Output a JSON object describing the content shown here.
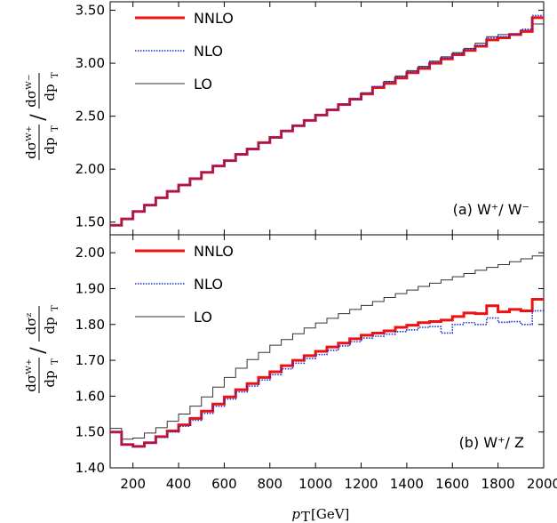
{
  "chart_data": [
    {
      "type": "line",
      "panel_label": "(a) W⁺/ W⁻",
      "ylabel_numerator": "dσᵂ⁺",
      "ylabel_num_sub": "dp",
      "ylabel_denominator": "dσᵂ⁻",
      "ylabel_T": "T",
      "ylim": [
        1.38,
        3.58
      ],
      "yticks": [
        "1.50",
        "2.00",
        "2.50",
        "3.00",
        "3.50"
      ],
      "ytick_values": [
        1.5,
        2.0,
        2.5,
        3.0,
        3.5
      ],
      "xlim": [
        100,
        2000
      ],
      "legend_position": "top-left",
      "x_edges": [
        100,
        150,
        200,
        250,
        300,
        350,
        400,
        450,
        500,
        550,
        600,
        650,
        700,
        750,
        800,
        850,
        900,
        950,
        1000,
        1050,
        1100,
        1150,
        1200,
        1250,
        1300,
        1350,
        1400,
        1450,
        1500,
        1550,
        1600,
        1650,
        1700,
        1750,
        1800,
        1850,
        1900,
        1950,
        2000
      ],
      "series": [
        {
          "name": "NNLO",
          "color": "#ee1111",
          "style": "solid",
          "width": 3,
          "values": [
            1.47,
            1.53,
            1.6,
            1.66,
            1.73,
            1.79,
            1.85,
            1.91,
            1.97,
            2.03,
            2.08,
            2.14,
            2.19,
            2.25,
            2.3,
            2.36,
            2.41,
            2.46,
            2.51,
            2.56,
            2.61,
            2.66,
            2.71,
            2.77,
            2.81,
            2.86,
            2.91,
            2.95,
            3.0,
            3.04,
            3.08,
            3.12,
            3.16,
            3.22,
            3.24,
            3.27,
            3.3,
            3.43,
            3.38
          ]
        },
        {
          "name": "NLO",
          "color": "#1a2fd6",
          "style": "dotted",
          "width": 1.6,
          "values": [
            1.47,
            1.53,
            1.6,
            1.66,
            1.73,
            1.79,
            1.85,
            1.91,
            1.97,
            2.03,
            2.08,
            2.14,
            2.19,
            2.25,
            2.3,
            2.36,
            2.41,
            2.46,
            2.51,
            2.56,
            2.61,
            2.66,
            2.72,
            2.78,
            2.82,
            2.87,
            2.92,
            2.96,
            3.01,
            3.05,
            3.09,
            3.13,
            3.17,
            3.24,
            3.25,
            3.27,
            3.32,
            3.45,
            3.4
          ]
        },
        {
          "name": "LO",
          "color": "#333333",
          "style": "solid",
          "width": 1,
          "values": [
            1.47,
            1.53,
            1.6,
            1.66,
            1.73,
            1.79,
            1.85,
            1.91,
            1.97,
            2.03,
            2.08,
            2.14,
            2.19,
            2.25,
            2.3,
            2.36,
            2.41,
            2.46,
            2.51,
            2.56,
            2.61,
            2.67,
            2.72,
            2.78,
            2.83,
            2.88,
            2.93,
            2.97,
            3.02,
            3.06,
            3.1,
            3.14,
            3.19,
            3.25,
            3.27,
            3.28,
            3.31,
            3.37,
            3.4
          ]
        }
      ]
    },
    {
      "type": "line",
      "panel_label": "(b) W⁺/ Z",
      "ylabel_numerator": "dσᵂ⁺",
      "ylabel_num_sub": "dp",
      "ylabel_denominator": "dσᶻ",
      "ylabel_T": "T",
      "ylim": [
        1.4,
        2.05
      ],
      "yticks": [
        "1.40",
        "1.50",
        "1.60",
        "1.70",
        "1.80",
        "1.90",
        "2.00"
      ],
      "ytick_values": [
        1.4,
        1.5,
        1.6,
        1.7,
        1.8,
        1.9,
        2.0
      ],
      "xlim": [
        100,
        2000
      ],
      "xticks": [
        "200",
        "400",
        "600",
        "800",
        "1000",
        "1200",
        "1400",
        "1600",
        "1800",
        "2000"
      ],
      "xtick_values": [
        200,
        400,
        600,
        800,
        1000,
        1200,
        1400,
        1600,
        1800,
        2000
      ],
      "xlabel": "p",
      "xlabel_sub": "T",
      "xlabel_unit": "[GeV]",
      "legend_position": "top-left",
      "x_edges": [
        100,
        150,
        200,
        250,
        300,
        350,
        400,
        450,
        500,
        550,
        600,
        650,
        700,
        750,
        800,
        850,
        900,
        950,
        1000,
        1050,
        1100,
        1150,
        1200,
        1250,
        1300,
        1350,
        1400,
        1450,
        1500,
        1550,
        1600,
        1650,
        1700,
        1750,
        1800,
        1850,
        1900,
        1950,
        2000
      ],
      "series": [
        {
          "name": "NNLO",
          "color": "#ee1111",
          "style": "solid",
          "width": 3,
          "values": [
            1.5,
            1.465,
            1.46,
            1.47,
            1.487,
            1.503,
            1.52,
            1.538,
            1.558,
            1.578,
            1.598,
            1.618,
            1.635,
            1.652,
            1.668,
            1.685,
            1.7,
            1.713,
            1.725,
            1.737,
            1.748,
            1.76,
            1.77,
            1.776,
            1.782,
            1.792,
            1.798,
            1.805,
            1.808,
            1.812,
            1.822,
            1.832,
            1.83,
            1.852,
            1.835,
            1.842,
            1.838,
            1.87,
            1.855
          ]
        },
        {
          "name": "NLO",
          "color": "#1a2fd6",
          "style": "dotted",
          "width": 1.6,
          "values": [
            1.5,
            1.465,
            1.46,
            1.47,
            1.485,
            1.5,
            1.516,
            1.533,
            1.552,
            1.572,
            1.592,
            1.612,
            1.628,
            1.645,
            1.66,
            1.676,
            1.692,
            1.705,
            1.716,
            1.728,
            1.74,
            1.752,
            1.762,
            1.767,
            1.773,
            1.78,
            1.785,
            1.792,
            1.794,
            1.776,
            1.8,
            1.805,
            1.8,
            1.818,
            1.806,
            1.808,
            1.8,
            1.838,
            1.815
          ]
        },
        {
          "name": "LO",
          "color": "#333333",
          "style": "solid",
          "width": 1,
          "values": [
            1.51,
            1.48,
            1.483,
            1.497,
            1.512,
            1.53,
            1.55,
            1.572,
            1.598,
            1.625,
            1.652,
            1.678,
            1.702,
            1.722,
            1.742,
            1.758,
            1.774,
            1.79,
            1.804,
            1.817,
            1.83,
            1.842,
            1.853,
            1.864,
            1.875,
            1.886,
            1.896,
            1.906,
            1.915,
            1.924,
            1.933,
            1.942,
            1.951,
            1.959,
            1.967,
            1.975,
            1.983,
            1.991,
            2.0
          ]
        }
      ]
    }
  ]
}
